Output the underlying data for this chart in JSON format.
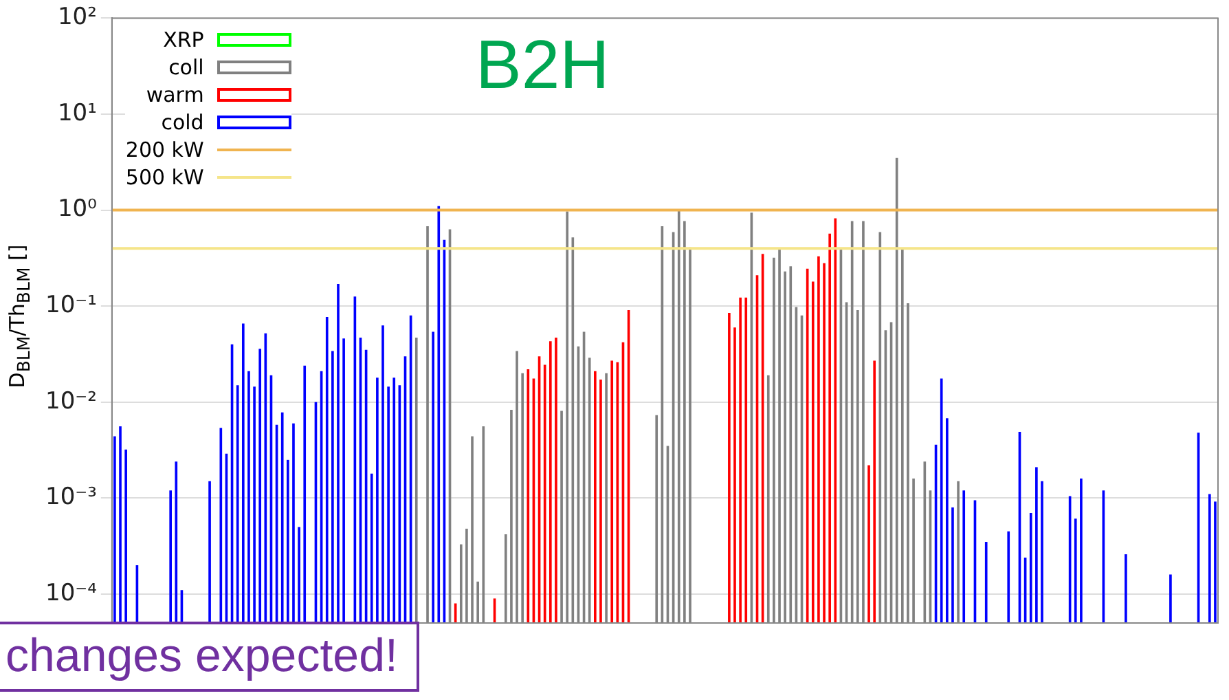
{
  "chart_data": {
    "type": "bar",
    "stacked": true,
    "ylabel": "D$_{BLM}$/Th$_{BLM}$ []",
    "log": "y",
    "grid": "y",
    "legend": "top left",
    "tick_labels": "y",
    "annotations": [
      "B2H",
      "changes expected!"
    ],
    "ylim": [
      5e-05,
      100
    ],
    "yticks": [
      {
        "value": 0.0001,
        "label": "10⁻⁴"
      },
      {
        "value": 0.001,
        "label": "10⁻³"
      },
      {
        "value": 0.01,
        "label": "10⁻²"
      },
      {
        "value": 0.1,
        "label": "10⁻¹"
      },
      {
        "value": 1,
        "label": "10⁰"
      },
      {
        "value": 10,
        "label": "10¹"
      },
      {
        "value": 100,
        "label": "10²"
      }
    ],
    "ref_lines": [
      {
        "axis": "y",
        "value": 1,
        "label": "200 kW",
        "color": "#f0b450"
      },
      {
        "axis": "y",
        "value": 0.4,
        "label": "500 kW",
        "color": "#f5e58a"
      }
    ],
    "categories": [
      null,
      null,
      null,
      null,
      null,
      null,
      null,
      null,
      null,
      null,
      null,
      null,
      null,
      null,
      null,
      null,
      null,
      null,
      null,
      null,
      null,
      null,
      null,
      null,
      null,
      null,
      null,
      null,
      null,
      null,
      null,
      null,
      null,
      null,
      null,
      null,
      null,
      null,
      null,
      null,
      null,
      null,
      null,
      null,
      null,
      null,
      null,
      null,
      null,
      null,
      null,
      null,
      null,
      null,
      null,
      null,
      null,
      null,
      null,
      null,
      null,
      null,
      null,
      null,
      null,
      null,
      null,
      null,
      null,
      null,
      null,
      null,
      null,
      null,
      null,
      null,
      null,
      null,
      null,
      null,
      null,
      null,
      null,
      null,
      null,
      null,
      null,
      null,
      null,
      null,
      null,
      null,
      null,
      null,
      null,
      null,
      null,
      null,
      null,
      null,
      null,
      null,
      null,
      null,
      null,
      null,
      null,
      null,
      null,
      null,
      null,
      null,
      null,
      null,
      null,
      null,
      null,
      null,
      null,
      null,
      null,
      null,
      null,
      null,
      null,
      null,
      null,
      null,
      null,
      null,
      null,
      null,
      null,
      null,
      null,
      null,
      null,
      null,
      null,
      null,
      null,
      null,
      null,
      null,
      null,
      null,
      null,
      null,
      null,
      null,
      null,
      null,
      null,
      null,
      null,
      null,
      null,
      null,
      null,
      null,
      null,
      null,
      null,
      null,
      null,
      null,
      null,
      null,
      null,
      null,
      null,
      null,
      null,
      null,
      null,
      null,
      null,
      null,
      null,
      null,
      null,
      null,
      null,
      null,
      null,
      null,
      null,
      null,
      null,
      null,
      null,
      null,
      null,
      null,
      null,
      null,
      null,
      null
    ],
    "series": [
      {
        "name": "XRP",
        "color": "#00ff00",
        "values": [
          null,
          null,
          null,
          null,
          null,
          null,
          null,
          null,
          null,
          null,
          null,
          null,
          null,
          null,
          null,
          null,
          null,
          null,
          null,
          null,
          null,
          null,
          null,
          null,
          null,
          null,
          null,
          null,
          null,
          null,
          null,
          null,
          null,
          null,
          null,
          null,
          null,
          null,
          null,
          null,
          null,
          null,
          null,
          null,
          null,
          null,
          null,
          null,
          null,
          null,
          null,
          null,
          null,
          null,
          null,
          null,
          null,
          null,
          null,
          null,
          null,
          null,
          null,
          null,
          null,
          null,
          null,
          null,
          null,
          null,
          null,
          null,
          null,
          null,
          null,
          null,
          null,
          null,
          null,
          null,
          null,
          null,
          null,
          null,
          null,
          null,
          null,
          null,
          null,
          null,
          null,
          null,
          null,
          null,
          null,
          null,
          null,
          null,
          null,
          null,
          null,
          null,
          null,
          null,
          null,
          null,
          null,
          null,
          null,
          null,
          null,
          null,
          null,
          null,
          null,
          null,
          null,
          null,
          null,
          null,
          null,
          null,
          null,
          null,
          null,
          null,
          null,
          null,
          null,
          null,
          null,
          null,
          null,
          null,
          null,
          null,
          null,
          null,
          null,
          null,
          null,
          null,
          null,
          null,
          null,
          null,
          null,
          null,
          null,
          null,
          null,
          null,
          null,
          null,
          null,
          null,
          null,
          null,
          null,
          null,
          null,
          null,
          null,
          null,
          null,
          null,
          null,
          null,
          null,
          null,
          null,
          null,
          null,
          null,
          null,
          null,
          null,
          null,
          null,
          null,
          null,
          null,
          null,
          null,
          null,
          null,
          null,
          null,
          null,
          null,
          null,
          null,
          null,
          null,
          null,
          null,
          null,
          null
        ]
      },
      {
        "name": "coll",
        "color": "#808080",
        "values": [
          null,
          null,
          null,
          null,
          null,
          null,
          null,
          null,
          null,
          null,
          null,
          null,
          null,
          null,
          null,
          null,
          null,
          null,
          null,
          null,
          null,
          null,
          null,
          null,
          null,
          null,
          null,
          null,
          null,
          null,
          null,
          null,
          null,
          null,
          null,
          null,
          null,
          null,
          null,
          null,
          null,
          null,
          null,
          null,
          null,
          null,
          null,
          null,
          null,
          null,
          null,
          null,
          null,
          null,
          0.047,
          null,
          0.68,
          null,
          null,
          null,
          0.63,
          null,
          0.00033,
          0.00048,
          0.0044,
          0.000135,
          0.0056,
          null,
          null,
          null,
          0.00042,
          0.0083,
          0.034,
          0.02,
          null,
          null,
          null,
          null,
          null,
          null,
          0.0081,
          0.97,
          0.52,
          0.038,
          0.054,
          0.029,
          null,
          null,
          0.02,
          null,
          null,
          null,
          null,
          null,
          null,
          null,
          null,
          0.0073,
          0.68,
          0.0035,
          0.59,
          1.0,
          0.77,
          0.41,
          null,
          null,
          null,
          null,
          null,
          null,
          null,
          null,
          null,
          null,
          0.94,
          null,
          null,
          0.019,
          0.32,
          0.39,
          0.23,
          0.26,
          0.098,
          0.08,
          null,
          null,
          null,
          null,
          null,
          null,
          0.39,
          0.11,
          0.77,
          0.091,
          0.77,
          null,
          null,
          0.59,
          0.056,
          0.068,
          3.5,
          0.4,
          0.107,
          0.0016,
          null,
          0.0024,
          0.0012,
          null,
          null,
          null,
          null,
          0.0015,
          null,
          null,
          null,
          null,
          null,
          null,
          null,
          null,
          null,
          null,
          null,
          null,
          null,
          null,
          null,
          null,
          null,
          null,
          null,
          null,
          null,
          null,
          null,
          null,
          null,
          null,
          null,
          null,
          null,
          null,
          null,
          null,
          null,
          null,
          null,
          null,
          null,
          null,
          null,
          null,
          null,
          null,
          null,
          null,
          null,
          null
        ]
      },
      {
        "name": "warm",
        "color": "#ff0000",
        "values": [
          null,
          null,
          null,
          null,
          null,
          null,
          null,
          null,
          null,
          null,
          null,
          null,
          null,
          null,
          null,
          null,
          null,
          null,
          null,
          null,
          null,
          null,
          null,
          null,
          null,
          null,
          null,
          null,
          null,
          null,
          null,
          null,
          null,
          null,
          null,
          null,
          null,
          null,
          null,
          null,
          null,
          null,
          null,
          null,
          null,
          null,
          null,
          null,
          null,
          null,
          null,
          null,
          null,
          null,
          null,
          null,
          null,
          null,
          null,
          null,
          null,
          8e-05,
          null,
          null,
          null,
          null,
          null,
          null,
          9e-05,
          null,
          null,
          null,
          null,
          null,
          0.022,
          0.0176,
          0.03,
          0.0245,
          0.043,
          0.047,
          null,
          null,
          null,
          null,
          null,
          null,
          0.021,
          0.0172,
          null,
          0.027,
          0.026,
          0.042,
          0.091,
          null,
          null,
          null,
          null,
          null,
          null,
          null,
          null,
          null,
          null,
          null,
          null,
          null,
          null,
          null,
          null,
          null,
          0.085,
          0.06,
          0.123,
          0.123,
          null,
          0.21,
          0.35,
          null,
          null,
          null,
          null,
          null,
          null,
          null,
          0.245,
          0.18,
          0.33,
          0.28,
          0.57,
          0.82,
          null,
          null,
          null,
          null,
          null,
          0.0022,
          0.027,
          null,
          null,
          null,
          null,
          null,
          null,
          null,
          null,
          null,
          null,
          null,
          null,
          null,
          null,
          null,
          null,
          null,
          null,
          null,
          null,
          null,
          null,
          null,
          null,
          null,
          null,
          null,
          null,
          null,
          null,
          null,
          null,
          null,
          null,
          null,
          null,
          null,
          null,
          null,
          null,
          null,
          null,
          null,
          null,
          null,
          null,
          null,
          null,
          null,
          null,
          null,
          null,
          null,
          null,
          null,
          null,
          null,
          null,
          null,
          null,
          null
        ]
      },
      {
        "name": "cold",
        "color": "#0000ff",
        "values": [
          0.0044,
          0.0056,
          0.0032,
          null,
          0.0002,
          null,
          null,
          null,
          null,
          null,
          0.0012,
          0.0024,
          0.00011,
          null,
          null,
          null,
          null,
          0.0015,
          null,
          0.0054,
          0.0029,
          0.04,
          0.015,
          0.066,
          0.021,
          0.0145,
          0.036,
          0.052,
          0.019,
          0.0058,
          0.0078,
          0.0025,
          0.006,
          0.0005,
          0.024,
          null,
          0.01,
          0.021,
          0.077,
          0.034,
          0.17,
          0.046,
          null,
          0.126,
          0.047,
          0.035,
          0.0018,
          0.018,
          0.063,
          0.0145,
          0.018,
          0.015,
          0.03,
          0.08,
          null,
          null,
          null,
          0.054,
          1.1,
          0.49,
          null,
          null,
          null,
          null,
          null,
          null,
          null,
          null,
          null,
          null,
          null,
          null,
          null,
          null,
          null,
          null,
          null,
          null,
          null,
          null,
          null,
          null,
          null,
          null,
          null,
          null,
          null,
          null,
          null,
          null,
          null,
          null,
          null,
          null,
          null,
          null,
          null,
          null,
          null,
          null,
          null,
          null,
          null,
          null,
          null,
          null,
          null,
          null,
          null,
          null,
          null,
          null,
          null,
          null,
          null,
          null,
          null,
          null,
          null,
          null,
          null,
          null,
          null,
          null,
          null,
          null,
          null,
          null,
          null,
          null,
          null,
          null,
          null,
          null,
          null,
          null,
          null,
          null,
          null,
          null,
          null,
          null,
          null,
          null,
          null,
          null,
          null,
          0.0036,
          0.0176,
          0.0068,
          0.0008,
          null,
          0.0012,
          null,
          0.00095,
          null,
          0.00035,
          null,
          null,
          null,
          0.00045,
          null,
          0.0049,
          0.00024,
          0.0007,
          0.0021,
          0.0015,
          null,
          null,
          null,
          null,
          0.00105,
          0.00061,
          0.0016,
          null,
          null,
          null,
          0.0012,
          null,
          null,
          null,
          0.00026,
          null,
          null,
          null,
          null,
          null,
          null,
          null,
          0.00016,
          null,
          null,
          null,
          null,
          0.0048,
          null,
          0.0011,
          0.00092
        ]
      }
    ]
  }
}
